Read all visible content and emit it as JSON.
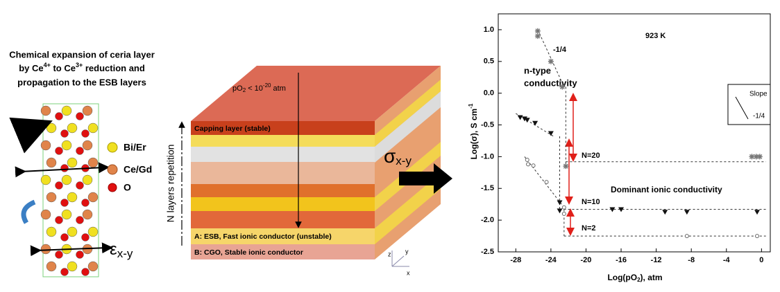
{
  "left_panel": {
    "caption": {
      "line1": "Chemical expansion of  ceria layer",
      "line2": [
        "by Ce",
        "4+",
        " to Ce",
        "3+",
        " reduction and"
      ],
      "line3": "propagation to the ESB layers"
    },
    "legend": [
      "Bi/Er",
      "Ce/Gd",
      "O"
    ],
    "strain": {
      "symbol": "ε",
      "subscript": "x-y"
    }
  },
  "middle_panel": {
    "po2": [
      "pO",
      "2",
      " < 10",
      "-20",
      " atm"
    ],
    "capping": "Capping layer (stable)",
    "layer_a": "A: ESB, Fast ionic conductor (unstable)",
    "layer_b": "B: CGO, Stable ionic conductor",
    "repetition": "N layers repetition",
    "conductivity": {
      "symbol": "σ",
      "subscript": "x-y"
    },
    "axes": [
      "z",
      "y",
      "x"
    ]
  },
  "chart_data": {
    "type": "scatter",
    "x_label": [
      "Log(pO",
      "2",
      "), atm"
    ],
    "y_label": [
      "Log(σ), S cm",
      "-1"
    ],
    "xlim": [
      -30,
      1
    ],
    "ylim": [
      -2.5,
      1.25
    ],
    "xticks": [
      -28,
      -24,
      -20,
      -16,
      -12,
      -8,
      -4,
      0
    ],
    "yticks": [
      {
        "value": 1,
        "label": "1.0"
      },
      0.5,
      {
        "value": 0,
        "label": "0.0"
      },
      -0.5,
      {
        "value": -1,
        "label": "-1.0"
      },
      -1.5,
      {
        "value": -2,
        "label": "-2.0"
      },
      -2.5
    ],
    "annotations": [
      "923 K",
      "-1/4",
      "n-type",
      "conductivity",
      "Dominant ionic conductivity",
      "Slope",
      "-1/4"
    ],
    "series": [
      {
        "name": "N=20",
        "color": "#777777",
        "marker": "asterisk",
        "x": [
          -25.5,
          -25.5,
          -24,
          -22.7,
          -22.3,
          -1.1,
          -0.6,
          -0.2
        ],
        "values": [
          0.98,
          0.9,
          0.5,
          0.1,
          -1.15,
          -1.0,
          -1.0,
          -1.0
        ]
      },
      {
        "name": "N=10",
        "color": "#111111",
        "marker": "triangle",
        "x": [
          -27.5,
          -27,
          -26.7,
          -25.8,
          -24,
          -23,
          -23,
          -17,
          -16,
          -11,
          -8.5,
          -0.5
        ],
        "values": [
          -0.38,
          -0.4,
          -0.42,
          -0.47,
          -0.63,
          -1.72,
          -1.85,
          -1.83,
          -1.83,
          -1.87,
          -1.87,
          -1.87
        ]
      },
      {
        "name": "N=2",
        "color": "#666666",
        "marker": "circle",
        "x": [
          -26.7,
          -26.6,
          -26,
          -24.5,
          -22.5,
          -22.5,
          -8.5,
          -0.5
        ],
        "values": [
          -1.05,
          -1.12,
          -1.14,
          -1.4,
          -1.8,
          -1.9,
          -2.25,
          -2.25
        ]
      }
    ],
    "fit_lines": [
      {
        "x": [
          -25.5,
          -22.5
        ],
        "values": [
          1.0,
          0.1
        ]
      },
      {
        "x": [
          -28,
          -23.7
        ],
        "values": [
          -0.32,
          -0.68
        ]
      },
      {
        "x": [
          -27,
          -22.5
        ],
        "values": [
          -1.0,
          -1.8
        ]
      },
      {
        "x": [
          -22.3,
          0.5
        ],
        "values": [
          -1.08,
          -1.08
        ]
      },
      {
        "x": [
          -23,
          0.5
        ],
        "values": [
          -1.83,
          -1.83
        ]
      },
      {
        "x": [
          -22.5,
          0.5
        ],
        "values": [
          -2.25,
          -2.25
        ]
      },
      {
        "x": [
          -22.3,
          -22.3
        ],
        "values": [
          0.1,
          -1.15
        ]
      },
      {
        "x": [
          -23,
          -23
        ],
        "values": [
          -0.68,
          -1.83
        ]
      },
      {
        "x": [
          -22.5,
          -22.5
        ],
        "values": [
          -1.83,
          -2.25
        ]
      }
    ]
  }
}
